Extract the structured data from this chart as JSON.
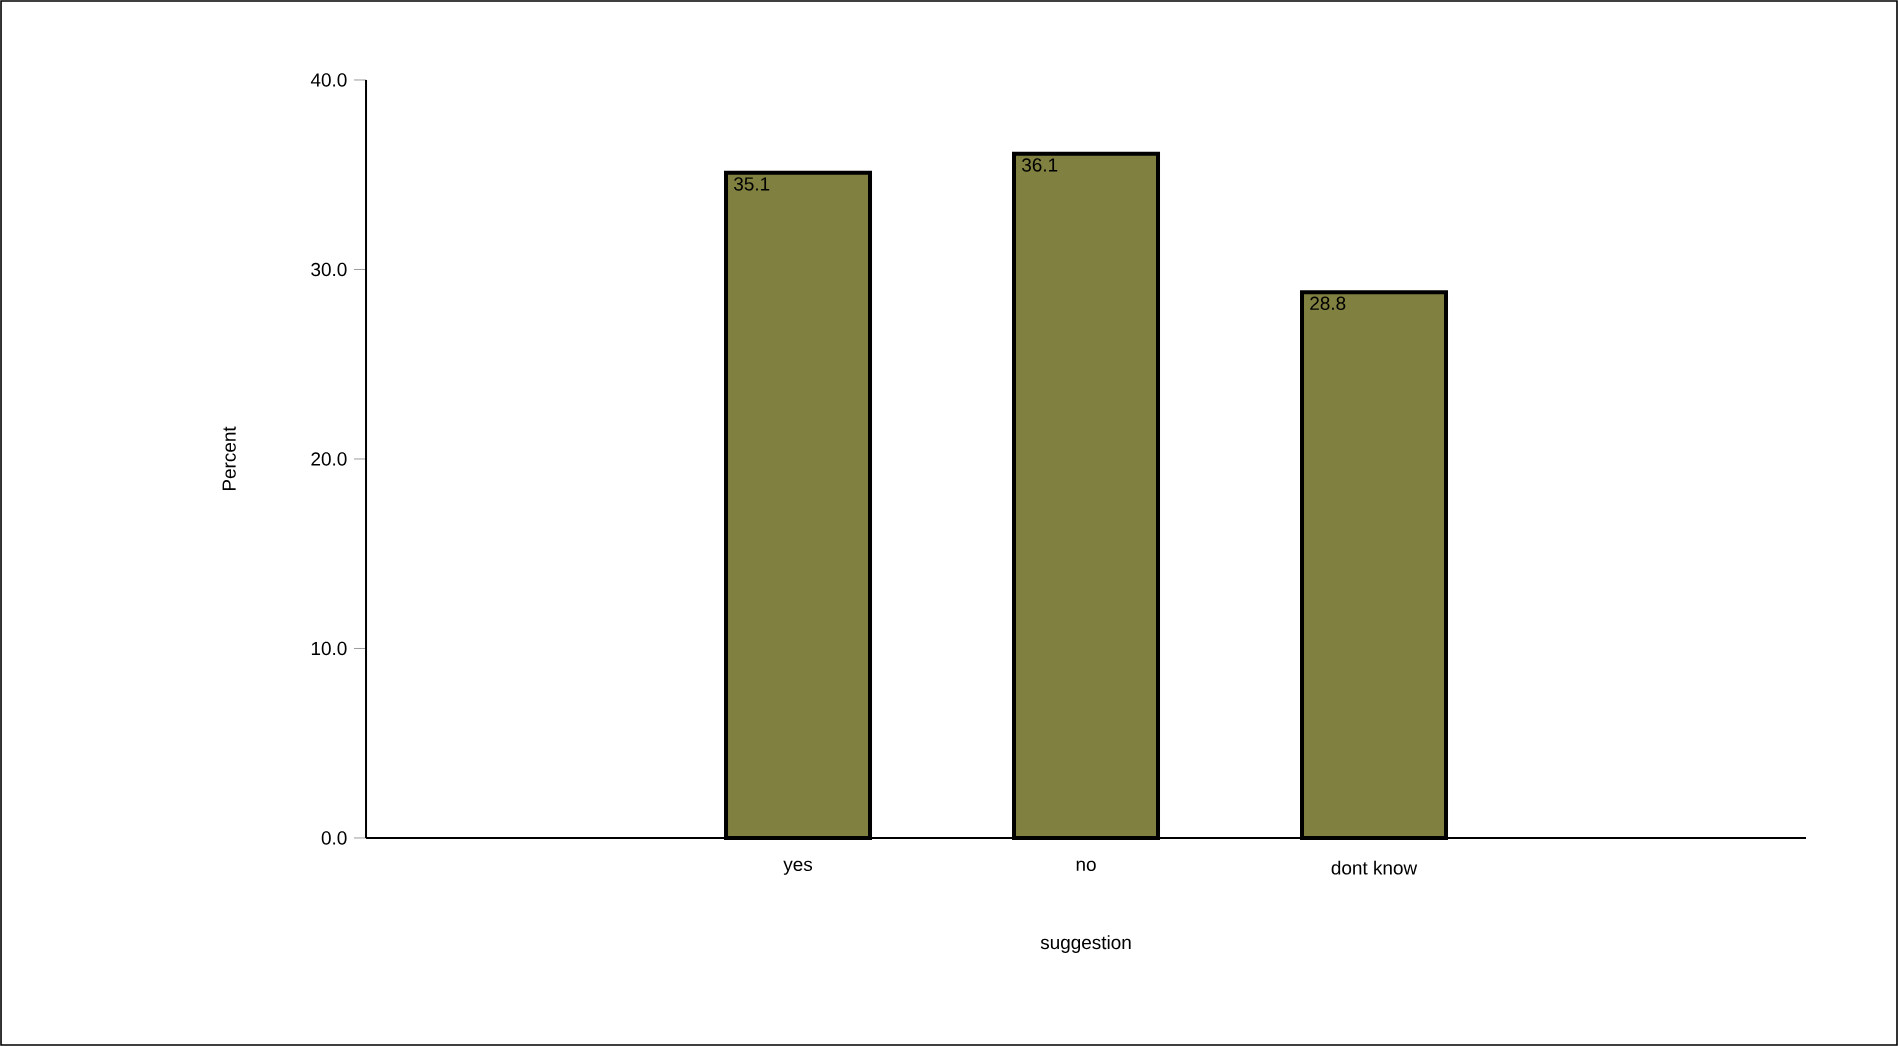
{
  "chart_data": {
    "type": "bar",
    "xlabel": "suggestion",
    "ylabel": "Percent",
    "categories": [
      "yes",
      "no",
      "dont know"
    ],
    "values": [
      35.1,
      36.1,
      28.8
    ],
    "color": "#808040",
    "ylim": [
      0,
      40
    ],
    "yticks": [
      {
        "value": 0,
        "label": "0.0"
      },
      {
        "value": 10,
        "label": "10.0"
      },
      {
        "value": 20,
        "label": "20.0"
      },
      {
        "value": 30,
        "label": "30.0"
      },
      {
        "value": 40,
        "label": "40.0"
      }
    ],
    "data_labels": true,
    "grid": false
  }
}
